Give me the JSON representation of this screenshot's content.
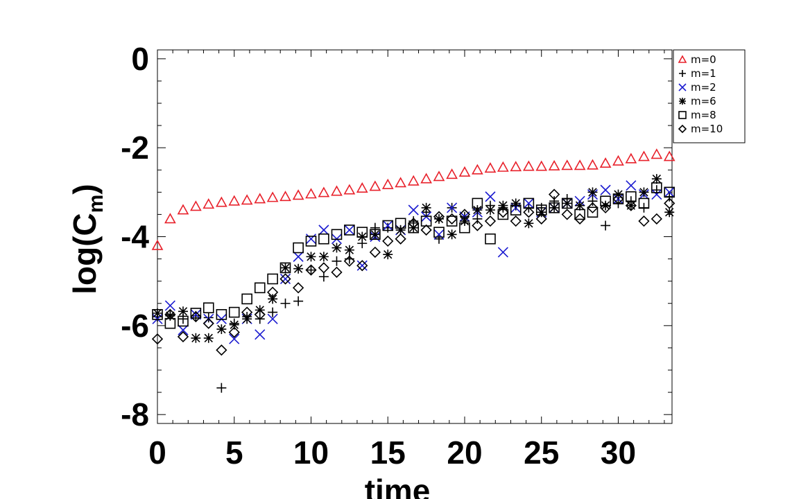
{
  "chart_data": {
    "type": "scatter",
    "xlabel": "time",
    "ylabel": "log(C",
    "ylabel_sub": "m",
    "ylabel_close": ")",
    "xlim": [
      0,
      33.5
    ],
    "ylim": [
      -8.2,
      0.2
    ],
    "xticks": [
      0,
      5,
      10,
      15,
      20,
      25,
      30
    ],
    "yticks": [
      0,
      -2,
      -4,
      -6,
      -8
    ],
    "grid": false,
    "legend_position": "top-right",
    "series": [
      {
        "name": "m=0",
        "marker": "triangle",
        "color": "#e8202a",
        "x": [
          0,
          0.83,
          1.67,
          2.5,
          3.33,
          4.17,
          5,
          5.83,
          6.67,
          7.5,
          8.33,
          9.17,
          10,
          10.83,
          11.67,
          12.5,
          13.33,
          14.17,
          15,
          15.83,
          16.67,
          17.5,
          18.33,
          19.17,
          20,
          20.83,
          21.67,
          22.5,
          23.33,
          24.17,
          25,
          25.83,
          26.67,
          27.5,
          28.33,
          29.17,
          30,
          30.83,
          31.67,
          32.5,
          33.33
        ],
        "y": [
          -4.2,
          -3.6,
          -3.4,
          -3.32,
          -3.27,
          -3.23,
          -3.2,
          -3.18,
          -3.15,
          -3.12,
          -3.1,
          -3.07,
          -3.04,
          -3.01,
          -2.98,
          -2.95,
          -2.91,
          -2.87,
          -2.83,
          -2.79,
          -2.75,
          -2.7,
          -2.65,
          -2.6,
          -2.55,
          -2.5,
          -2.46,
          -2.44,
          -2.43,
          -2.42,
          -2.42,
          -2.41,
          -2.4,
          -2.4,
          -2.39,
          -2.35,
          -2.3,
          -2.25,
          -2.2,
          -2.15,
          -2.2
        ]
      },
      {
        "name": "m=1",
        "marker": "plus",
        "color": "#000000",
        "x": [
          0,
          0.83,
          1.67,
          2.5,
          3.33,
          4.17,
          5,
          5.83,
          6.67,
          7.5,
          8.33,
          9.17,
          10,
          10.83,
          11.67,
          12.5,
          13.33,
          14.17,
          15,
          15.83,
          16.67,
          17.5,
          18.33,
          19.17,
          20,
          20.83,
          21.67,
          22.5,
          23.33,
          24.17,
          25,
          25.83,
          26.67,
          27.5,
          28.33,
          29.17,
          30,
          30.83,
          31.67,
          32.5,
          33.33
        ],
        "y": [
          -5.8,
          -5.75,
          -5.85,
          -5.78,
          -5.82,
          -7.4,
          -5.95,
          -5.8,
          -5.85,
          -5.7,
          -5.5,
          -5.45,
          -4.75,
          -4.9,
          -4.55,
          -4.5,
          -4.15,
          -3.8,
          -3.8,
          -3.85,
          -3.65,
          -3.45,
          -4.05,
          -3.35,
          -3.55,
          -3.6,
          -3.3,
          -3.35,
          -3.3,
          -3.35,
          -3.35,
          -3.2,
          -3.15,
          -3.3,
          -3.2,
          -3.75,
          -3.25,
          -3.2,
          -3.35,
          -2.95,
          -3.1
        ]
      },
      {
        "name": "m=2",
        "marker": "x",
        "color": "#1a1ad0",
        "x": [
          0,
          0.83,
          1.67,
          2.5,
          3.33,
          4.17,
          5,
          5.83,
          6.67,
          7.5,
          8.33,
          9.17,
          10,
          10.83,
          11.67,
          12.5,
          13.33,
          14.17,
          15,
          15.83,
          16.67,
          17.5,
          18.33,
          19.17,
          20,
          20.83,
          21.67,
          22.5,
          23.33,
          24.17,
          25,
          25.83,
          26.67,
          27.5,
          28.33,
          29.17,
          30,
          30.83,
          31.67,
          32.5,
          33.33
        ],
        "y": [
          -5.85,
          -5.55,
          -6.1,
          -5.75,
          -5.85,
          -5.85,
          -6.3,
          -5.85,
          -6.2,
          -5.85,
          -4.95,
          -4.45,
          -4.05,
          -3.85,
          -4.05,
          -3.85,
          -4.65,
          -4.0,
          -3.75,
          -3.85,
          -3.4,
          -3.55,
          -3.95,
          -3.35,
          -3.55,
          -3.45,
          -3.1,
          -4.35,
          -3.35,
          -3.25,
          -3.45,
          -3.35,
          -3.25,
          -3.2,
          -3.05,
          -2.95,
          -3.15,
          -2.85,
          -3.05,
          -3.05,
          -3.0
        ]
      },
      {
        "name": "m=6",
        "marker": "asterisk",
        "color": "#000000",
        "x": [
          0,
          0.83,
          1.67,
          2.5,
          3.33,
          4.17,
          5,
          5.83,
          6.67,
          7.5,
          8.33,
          9.17,
          10,
          10.83,
          11.67,
          12.5,
          13.33,
          14.17,
          15,
          15.83,
          16.67,
          17.5,
          18.33,
          19.17,
          20,
          20.83,
          21.67,
          22.5,
          23.33,
          24.17,
          25,
          25.83,
          26.67,
          27.5,
          28.33,
          29.17,
          30,
          30.83,
          31.67,
          32.5,
          33.33
        ],
        "y": [
          -5.72,
          -5.78,
          -5.68,
          -6.28,
          -6.28,
          -6.08,
          -5.98,
          -5.85,
          -5.65,
          -5.4,
          -4.7,
          -4.72,
          -4.45,
          -4.45,
          -4.25,
          -4.3,
          -4.0,
          -3.95,
          -4.4,
          -3.85,
          -3.8,
          -3.35,
          -3.6,
          -3.95,
          -3.65,
          -3.4,
          -3.4,
          -3.3,
          -3.25,
          -3.7,
          -3.45,
          -3.35,
          -3.25,
          -3.3,
          -3.0,
          -3.3,
          -3.05,
          -3.3,
          -3.0,
          -2.7,
          -3.45
        ]
      },
      {
        "name": "m=8",
        "marker": "square",
        "color": "#000000",
        "x": [
          0,
          0.83,
          1.67,
          2.5,
          3.33,
          4.17,
          5,
          5.83,
          6.67,
          7.5,
          8.33,
          9.17,
          10,
          10.83,
          11.67,
          12.5,
          13.33,
          14.17,
          15,
          15.83,
          16.67,
          17.5,
          18.33,
          19.17,
          20,
          20.83,
          21.67,
          22.5,
          23.33,
          24.17,
          25,
          25.83,
          26.67,
          27.5,
          28.33,
          29.17,
          30,
          30.83,
          31.67,
          32.5,
          33.33
        ],
        "y": [
          -5.75,
          -5.95,
          -5.9,
          -5.72,
          -5.6,
          -5.75,
          -5.7,
          -5.4,
          -5.15,
          -4.95,
          -4.7,
          -4.25,
          -4.1,
          -4.05,
          -3.95,
          -3.85,
          -3.9,
          -3.95,
          -3.75,
          -3.7,
          -3.8,
          -3.65,
          -3.9,
          -3.65,
          -3.8,
          -3.25,
          -4.05,
          -3.5,
          -3.4,
          -3.25,
          -3.4,
          -3.35,
          -3.25,
          -3.5,
          -3.45,
          -3.2,
          -3.15,
          -3.1,
          -3.25,
          -2.9,
          -3.0
        ]
      },
      {
        "name": "m=10",
        "marker": "diamond",
        "color": "#000000",
        "x": [
          0,
          0.83,
          1.67,
          2.5,
          3.33,
          4.17,
          5,
          5.83,
          6.67,
          7.5,
          8.33,
          9.17,
          10,
          10.83,
          11.67,
          12.5,
          13.33,
          14.17,
          15,
          15.83,
          16.67,
          17.5,
          18.33,
          19.17,
          20,
          20.83,
          21.67,
          22.5,
          23.33,
          24.17,
          25,
          25.83,
          26.67,
          27.5,
          28.33,
          29.17,
          30,
          30.83,
          31.67,
          32.5,
          33.33
        ],
        "y": [
          -6.3,
          -5.75,
          -6.25,
          -5.8,
          -5.95,
          -6.55,
          -6.15,
          -5.7,
          -5.75,
          -5.25,
          -4.95,
          -5.15,
          -4.75,
          -4.7,
          -4.8,
          -4.55,
          -4.65,
          -4.35,
          -4.1,
          -4.05,
          -3.7,
          -3.85,
          -3.55,
          -3.6,
          -3.5,
          -3.75,
          -3.65,
          -3.45,
          -3.65,
          -3.45,
          -3.6,
          -3.05,
          -3.5,
          -3.6,
          -3.35,
          -3.35,
          -3.15,
          -3.3,
          -3.65,
          -3.6,
          -3.25
        ]
      }
    ]
  }
}
